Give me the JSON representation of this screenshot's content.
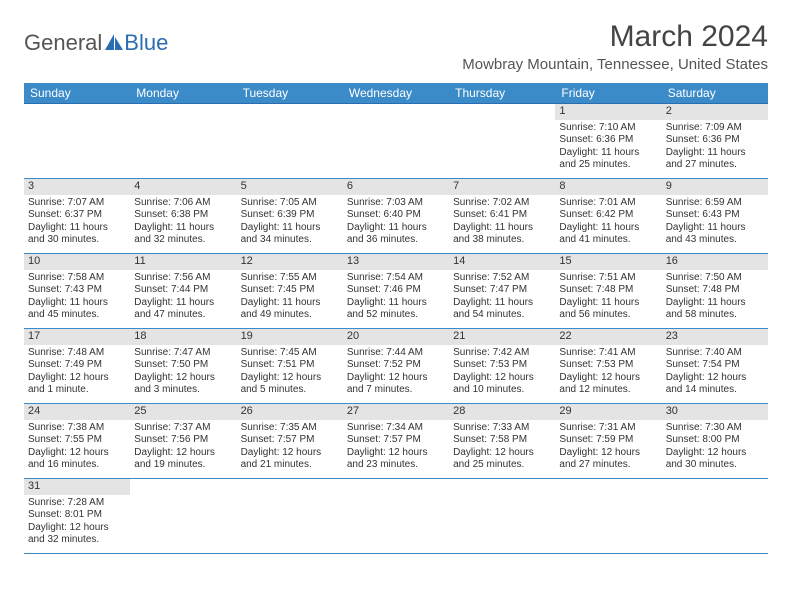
{
  "logo": {
    "text_general": "General",
    "text_blue": "Blue"
  },
  "title": "March 2024",
  "location": "Mowbray Mountain, Tennessee, United States",
  "colors": {
    "header_bg": "#3b8bc9",
    "header_text": "#ffffff",
    "daynum_bg": "#e4e4e4",
    "row_border": "#3b8bc9",
    "page_bg": "#ffffff",
    "body_text": "#333333"
  },
  "day_headers": [
    "Sunday",
    "Monday",
    "Tuesday",
    "Wednesday",
    "Thursday",
    "Friday",
    "Saturday"
  ],
  "weeks": [
    [
      null,
      null,
      null,
      null,
      null,
      {
        "n": "1",
        "sr": "Sunrise: 7:10 AM",
        "ss": "Sunset: 6:36 PM",
        "d1": "Daylight: 11 hours",
        "d2": "and 25 minutes."
      },
      {
        "n": "2",
        "sr": "Sunrise: 7:09 AM",
        "ss": "Sunset: 6:36 PM",
        "d1": "Daylight: 11 hours",
        "d2": "and 27 minutes."
      }
    ],
    [
      {
        "n": "3",
        "sr": "Sunrise: 7:07 AM",
        "ss": "Sunset: 6:37 PM",
        "d1": "Daylight: 11 hours",
        "d2": "and 30 minutes."
      },
      {
        "n": "4",
        "sr": "Sunrise: 7:06 AM",
        "ss": "Sunset: 6:38 PM",
        "d1": "Daylight: 11 hours",
        "d2": "and 32 minutes."
      },
      {
        "n": "5",
        "sr": "Sunrise: 7:05 AM",
        "ss": "Sunset: 6:39 PM",
        "d1": "Daylight: 11 hours",
        "d2": "and 34 minutes."
      },
      {
        "n": "6",
        "sr": "Sunrise: 7:03 AM",
        "ss": "Sunset: 6:40 PM",
        "d1": "Daylight: 11 hours",
        "d2": "and 36 minutes."
      },
      {
        "n": "7",
        "sr": "Sunrise: 7:02 AM",
        "ss": "Sunset: 6:41 PM",
        "d1": "Daylight: 11 hours",
        "d2": "and 38 minutes."
      },
      {
        "n": "8",
        "sr": "Sunrise: 7:01 AM",
        "ss": "Sunset: 6:42 PM",
        "d1": "Daylight: 11 hours",
        "d2": "and 41 minutes."
      },
      {
        "n": "9",
        "sr": "Sunrise: 6:59 AM",
        "ss": "Sunset: 6:43 PM",
        "d1": "Daylight: 11 hours",
        "d2": "and 43 minutes."
      }
    ],
    [
      {
        "n": "10",
        "sr": "Sunrise: 7:58 AM",
        "ss": "Sunset: 7:43 PM",
        "d1": "Daylight: 11 hours",
        "d2": "and 45 minutes."
      },
      {
        "n": "11",
        "sr": "Sunrise: 7:56 AM",
        "ss": "Sunset: 7:44 PM",
        "d1": "Daylight: 11 hours",
        "d2": "and 47 minutes."
      },
      {
        "n": "12",
        "sr": "Sunrise: 7:55 AM",
        "ss": "Sunset: 7:45 PM",
        "d1": "Daylight: 11 hours",
        "d2": "and 49 minutes."
      },
      {
        "n": "13",
        "sr": "Sunrise: 7:54 AM",
        "ss": "Sunset: 7:46 PM",
        "d1": "Daylight: 11 hours",
        "d2": "and 52 minutes."
      },
      {
        "n": "14",
        "sr": "Sunrise: 7:52 AM",
        "ss": "Sunset: 7:47 PM",
        "d1": "Daylight: 11 hours",
        "d2": "and 54 minutes."
      },
      {
        "n": "15",
        "sr": "Sunrise: 7:51 AM",
        "ss": "Sunset: 7:48 PM",
        "d1": "Daylight: 11 hours",
        "d2": "and 56 minutes."
      },
      {
        "n": "16",
        "sr": "Sunrise: 7:50 AM",
        "ss": "Sunset: 7:48 PM",
        "d1": "Daylight: 11 hours",
        "d2": "and 58 minutes."
      }
    ],
    [
      {
        "n": "17",
        "sr": "Sunrise: 7:48 AM",
        "ss": "Sunset: 7:49 PM",
        "d1": "Daylight: 12 hours",
        "d2": "and 1 minute."
      },
      {
        "n": "18",
        "sr": "Sunrise: 7:47 AM",
        "ss": "Sunset: 7:50 PM",
        "d1": "Daylight: 12 hours",
        "d2": "and 3 minutes."
      },
      {
        "n": "19",
        "sr": "Sunrise: 7:45 AM",
        "ss": "Sunset: 7:51 PM",
        "d1": "Daylight: 12 hours",
        "d2": "and 5 minutes."
      },
      {
        "n": "20",
        "sr": "Sunrise: 7:44 AM",
        "ss": "Sunset: 7:52 PM",
        "d1": "Daylight: 12 hours",
        "d2": "and 7 minutes."
      },
      {
        "n": "21",
        "sr": "Sunrise: 7:42 AM",
        "ss": "Sunset: 7:53 PM",
        "d1": "Daylight: 12 hours",
        "d2": "and 10 minutes."
      },
      {
        "n": "22",
        "sr": "Sunrise: 7:41 AM",
        "ss": "Sunset: 7:53 PM",
        "d1": "Daylight: 12 hours",
        "d2": "and 12 minutes."
      },
      {
        "n": "23",
        "sr": "Sunrise: 7:40 AM",
        "ss": "Sunset: 7:54 PM",
        "d1": "Daylight: 12 hours",
        "d2": "and 14 minutes."
      }
    ],
    [
      {
        "n": "24",
        "sr": "Sunrise: 7:38 AM",
        "ss": "Sunset: 7:55 PM",
        "d1": "Daylight: 12 hours",
        "d2": "and 16 minutes."
      },
      {
        "n": "25",
        "sr": "Sunrise: 7:37 AM",
        "ss": "Sunset: 7:56 PM",
        "d1": "Daylight: 12 hours",
        "d2": "and 19 minutes."
      },
      {
        "n": "26",
        "sr": "Sunrise: 7:35 AM",
        "ss": "Sunset: 7:57 PM",
        "d1": "Daylight: 12 hours",
        "d2": "and 21 minutes."
      },
      {
        "n": "27",
        "sr": "Sunrise: 7:34 AM",
        "ss": "Sunset: 7:57 PM",
        "d1": "Daylight: 12 hours",
        "d2": "and 23 minutes."
      },
      {
        "n": "28",
        "sr": "Sunrise: 7:33 AM",
        "ss": "Sunset: 7:58 PM",
        "d1": "Daylight: 12 hours",
        "d2": "and 25 minutes."
      },
      {
        "n": "29",
        "sr": "Sunrise: 7:31 AM",
        "ss": "Sunset: 7:59 PM",
        "d1": "Daylight: 12 hours",
        "d2": "and 27 minutes."
      },
      {
        "n": "30",
        "sr": "Sunrise: 7:30 AM",
        "ss": "Sunset: 8:00 PM",
        "d1": "Daylight: 12 hours",
        "d2": "and 30 minutes."
      }
    ],
    [
      {
        "n": "31",
        "sr": "Sunrise: 7:28 AM",
        "ss": "Sunset: 8:01 PM",
        "d1": "Daylight: 12 hours",
        "d2": "and 32 minutes."
      },
      null,
      null,
      null,
      null,
      null,
      null
    ]
  ]
}
